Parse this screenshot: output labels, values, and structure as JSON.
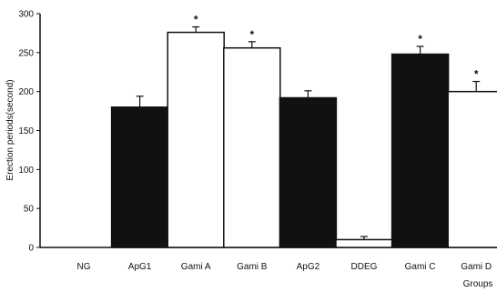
{
  "chart_data": {
    "type": "bar",
    "title": "",
    "xlabel": "Groups",
    "ylabel": "Erection periods(second)",
    "ylim": [
      0,
      300
    ],
    "yticks": [
      0,
      50,
      100,
      150,
      200,
      250,
      300
    ],
    "categories": [
      "NG",
      "ApG1",
      "Gami A",
      "Gami B",
      "ApG2",
      "DDEG",
      "Gami C",
      "Gami D"
    ],
    "values": [
      0,
      180,
      276,
      256,
      192,
      10,
      248,
      200
    ],
    "errors": [
      0,
      14,
      7,
      8,
      9,
      4,
      10,
      13
    ],
    "significant": [
      false,
      false,
      true,
      true,
      false,
      false,
      true,
      true
    ],
    "significance_marker": "*",
    "bar_fills": [
      "#ffffff",
      "#111111",
      "#ffffff",
      "#ffffff",
      "#111111",
      "#ffffff",
      "#111111",
      "#ffffff"
    ],
    "grid": false,
    "legend": "none"
  }
}
